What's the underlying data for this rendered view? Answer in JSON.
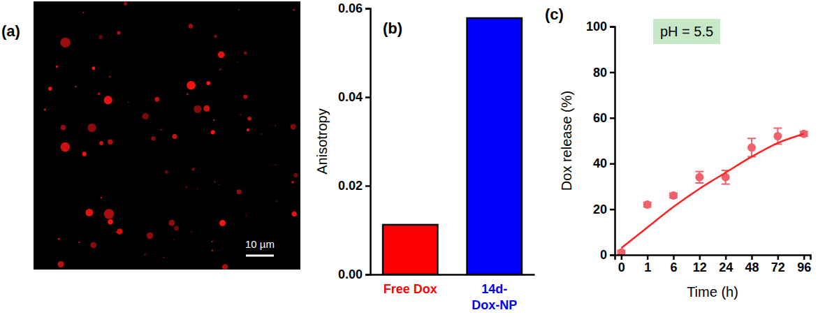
{
  "chart_data": [
    {
      "type": "image",
      "panel": "(a)",
      "scale_bar": "10 µm"
    },
    {
      "type": "bar",
      "panel": "(b)",
      "categories": [
        "Free Dox",
        "14d-Dox-NP"
      ],
      "values": [
        0.0112,
        0.0578
      ],
      "colors": [
        "#ff0000",
        "#0000ff"
      ],
      "y_label": "Anisotropy",
      "ylim": [
        0,
        0.06
      ],
      "yticks": [
        {
          "value": 0,
          "label": "0.00"
        },
        {
          "value": 0.02,
          "label": "0.02"
        },
        {
          "value": 0.04,
          "label": "0.04"
        },
        {
          "value": 0.06,
          "label": "0.06"
        }
      ]
    },
    {
      "type": "line",
      "panel": "(c)",
      "annotation": "pH = 5.5",
      "x_label": "Time (h)",
      "y_label": "Dox release (%)",
      "categories": [
        0,
        1,
        6,
        12,
        24,
        48,
        72,
        96
      ],
      "series": [
        {
          "type": "scatter",
          "color": "#f0606a",
          "marker": "circle",
          "line_style": "none",
          "values": [
            1,
            22,
            26,
            34,
            34,
            47,
            52,
            53
          ],
          "errors": [
            1,
            1,
            1,
            2.5,
            3,
            4,
            3.5,
            1
          ]
        },
        {
          "type": "line",
          "color": "#ff2020",
          "line_style": "solid",
          "values": [
            3,
            12,
            21,
            29,
            36,
            43,
            49,
            53
          ]
        }
      ],
      "ylim": [
        0,
        100
      ],
      "yticks": [
        0,
        20,
        40,
        60,
        80,
        100
      ]
    }
  ]
}
